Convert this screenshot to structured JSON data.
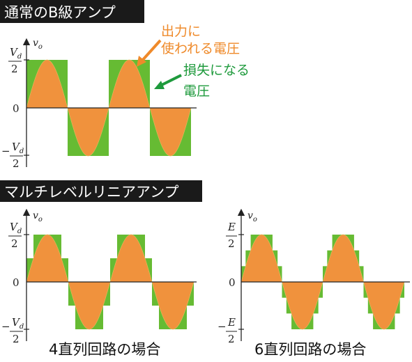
{
  "colors": {
    "green": "#66bb33",
    "orange": "#f0923d",
    "ann_orange": "#ef8a2a",
    "ann_green": "#1e9a3c",
    "header_bg": "#1a1a1a"
  },
  "headers": {
    "normal": "通常のB級アンプ",
    "multilevel": "マルチレベルリニアアンプ"
  },
  "annotations": {
    "output_line1": "出力に",
    "output_line2": "使われる電圧",
    "loss_line1": "損失になる",
    "loss_line2": "電圧"
  },
  "axis": {
    "vo_v": "v",
    "vo_sub": "o",
    "zero": "0",
    "minus": "−",
    "two": "2",
    "vd_v": "V",
    "vd_sub": "d",
    "E": "E"
  },
  "captions": {
    "four": "4直列回路の場合",
    "six": "6直列回路の場合"
  },
  "diagrams": [
    {
      "id": "b-class",
      "steps": 1
    },
    {
      "id": "four-series",
      "steps": 2
    },
    {
      "id": "six-series",
      "steps": 3
    }
  ]
}
